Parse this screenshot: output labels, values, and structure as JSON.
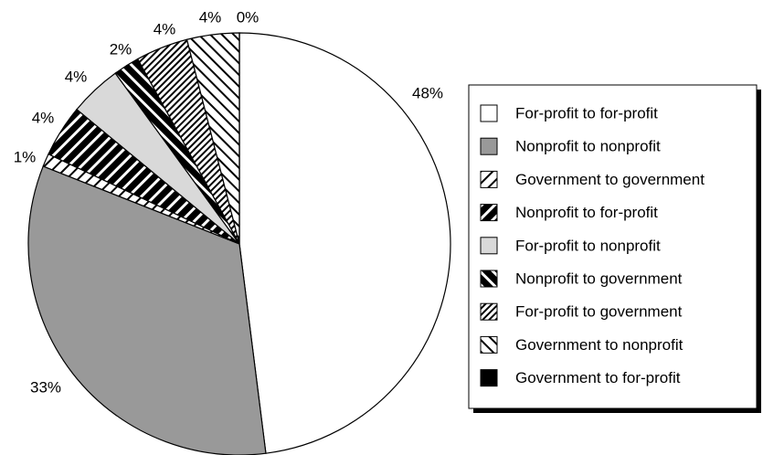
{
  "chart_data": {
    "type": "pie",
    "categories": [
      "For-profit to for-profit",
      "Nonprofit to nonprofit",
      "Government to government",
      "Nonprofit to for-profit",
      "For-profit to nonprofit",
      "Nonprofit to government",
      "For-profit to government",
      "Government to nonprofit",
      "Government to for-profit"
    ],
    "values": [
      48,
      33,
      1,
      4,
      4,
      2,
      4,
      4,
      0
    ],
    "value_labels": [
      "48%",
      "33%",
      "1%",
      "4%",
      "4%",
      "2%",
      "4%",
      "4%",
      "0%"
    ],
    "colors": [
      "#ffffff",
      "#999999",
      "#ffffff",
      "#000000",
      "#d9d9d9",
      "#000000",
      "#ffffff",
      "#ffffff",
      "#000000"
    ],
    "patterns": [
      null,
      null,
      "diag-up",
      "diag-up-bold",
      null,
      "diag-down-bold",
      "diag-up-fine",
      "diag-down",
      null
    ],
    "legend": "right"
  }
}
